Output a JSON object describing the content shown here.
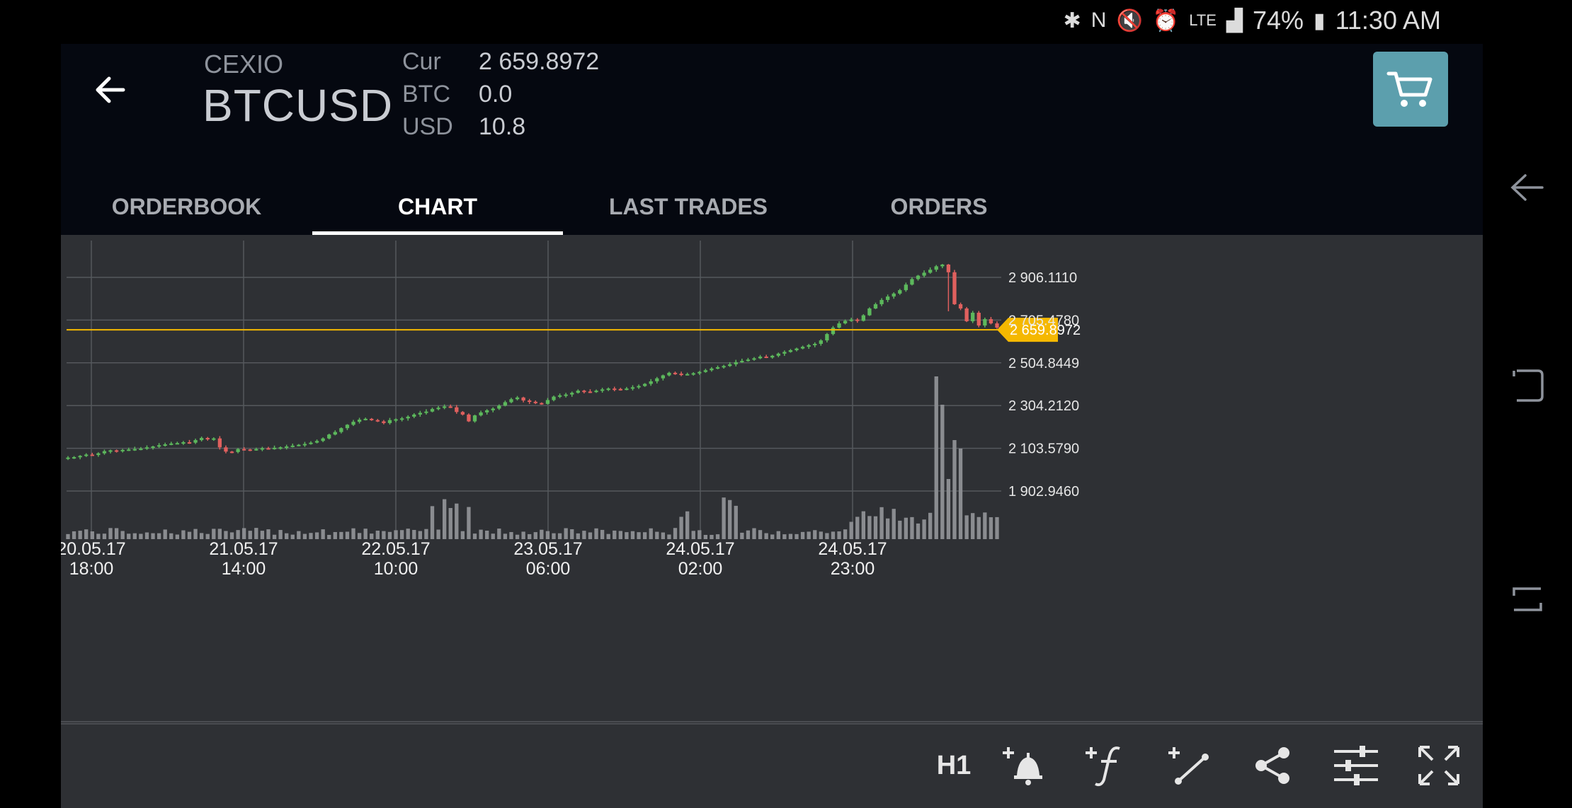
{
  "status": {
    "battery": "74%",
    "time": "11:30 AM",
    "network": "LTE",
    "icons": [
      "bluetooth-icon",
      "nfc-icon",
      "mute-icon",
      "alarm-icon",
      "lte-icon",
      "signal-icon",
      "battery-icon"
    ]
  },
  "header": {
    "exchange": "CEXIO",
    "symbol": "BTCUSD",
    "balances": [
      {
        "label": "Cur",
        "value": "2 659.8972"
      },
      {
        "label": "BTC",
        "value": "0.0"
      },
      {
        "label": "USD",
        "value": "10.8"
      }
    ],
    "cart_color": "#5c9fad"
  },
  "tabs": [
    {
      "label": "ORDERBOOK",
      "active": false
    },
    {
      "label": "CHART",
      "active": true
    },
    {
      "label": "LAST TRADES",
      "active": false
    },
    {
      "label": "ORDERS",
      "active": false
    }
  ],
  "chart_data": {
    "type": "candlestick",
    "price_labels": [
      "2 906.1110",
      "2 705.4780",
      "2 504.8449",
      "2 304.2120",
      "2 103.5790",
      "1 902.9460"
    ],
    "current_price_label": "2 659.8972",
    "current_price": 2659.8972,
    "time_labels": [
      {
        "date": "20.05.17",
        "time": "18:00"
      },
      {
        "date": "21.05.17",
        "time": "14:00"
      },
      {
        "date": "22.05.17",
        "time": "10:00"
      },
      {
        "date": "23.05.17",
        "time": "06:00"
      },
      {
        "date": "24.05.17",
        "time": "02:00"
      },
      {
        "date": "24.05.17",
        "time": "23:00"
      }
    ],
    "colors": {
      "up": "#5cb85c",
      "down": "#e0605e",
      "price_line": "#f5b800",
      "grid": "#55585d",
      "volume": "#8a8c90"
    },
    "close": [
      2060,
      2062,
      2068,
      2074,
      2072,
      2080,
      2090,
      2094,
      2090,
      2096,
      2098,
      2100,
      2102,
      2108,
      2112,
      2118,
      2122,
      2126,
      2128,
      2132,
      2130,
      2142,
      2152,
      2148,
      2150,
      2108,
      2088,
      2086,
      2100,
      2098,
      2096,
      2100,
      2104,
      2102,
      2106,
      2108,
      2112,
      2116,
      2120,
      2124,
      2130,
      2138,
      2150,
      2168,
      2180,
      2198,
      2214,
      2228,
      2238,
      2242,
      2236,
      2230,
      2222,
      2236,
      2240,
      2244,
      2252,
      2262,
      2270,
      2276,
      2288,
      2294,
      2300,
      2296,
      2274,
      2262,
      2230,
      2258,
      2272,
      2282,
      2290,
      2304,
      2320,
      2334,
      2342,
      2328,
      2322,
      2316,
      2312,
      2330,
      2346,
      2352,
      2356,
      2364,
      2374,
      2370,
      2368,
      2374,
      2380,
      2384,
      2382,
      2380,
      2384,
      2390,
      2396,
      2406,
      2418,
      2432,
      2446,
      2458,
      2454,
      2450,
      2452,
      2456,
      2462,
      2470,
      2478,
      2484,
      2490,
      2498,
      2508,
      2514,
      2520,
      2526,
      2534,
      2530,
      2538,
      2548,
      2556,
      2564,
      2572,
      2580,
      2588,
      2594,
      2610,
      2640,
      2670,
      2690,
      2702,
      2708,
      2702,
      2728,
      2760,
      2780,
      2800,
      2816,
      2830,
      2846,
      2872,
      2898,
      2914,
      2928,
      2942,
      2958,
      2966,
      2930,
      2780,
      2760,
      2700,
      2740,
      2680,
      2710,
      2690,
      2670
    ]
  },
  "toolbar": {
    "timeframe": "H1",
    "tools": [
      "add-alert-icon",
      "add-indicator-icon",
      "add-trendline-icon",
      "share-icon",
      "settings-sliders-icon",
      "fullscreen-icon"
    ]
  }
}
